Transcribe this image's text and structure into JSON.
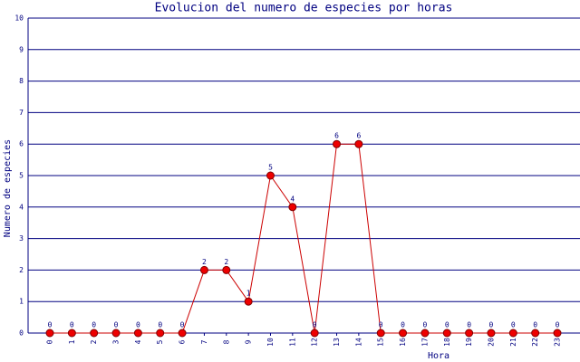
{
  "chart_data": {
    "type": "line",
    "title": "Evolucion del numero de especies por horas",
    "x_label": "Hora",
    "y_label": "Numero de especies",
    "categories": [
      "0",
      "1",
      "2",
      "3",
      "4",
      "5",
      "6",
      "7",
      "8",
      "9",
      "10",
      "11",
      "12",
      "13",
      "14",
      "15",
      "16",
      "17",
      "18",
      "19",
      "20",
      "21",
      "22",
      "23"
    ],
    "series": [
      {
        "name": "Especies",
        "color": "#cc0000",
        "values": [
          0,
          0,
          0,
          0,
          0,
          0,
          0,
          2,
          2,
          1,
          5,
          4,
          0,
          6,
          6,
          0,
          0,
          0,
          0,
          0,
          0,
          0,
          0,
          0
        ]
      }
    ],
    "ylim": [
      0,
      10
    ],
    "yticks": [
      0,
      1,
      2,
      3,
      4,
      5,
      6,
      7,
      8,
      9,
      10
    ],
    "grid": true
  }
}
